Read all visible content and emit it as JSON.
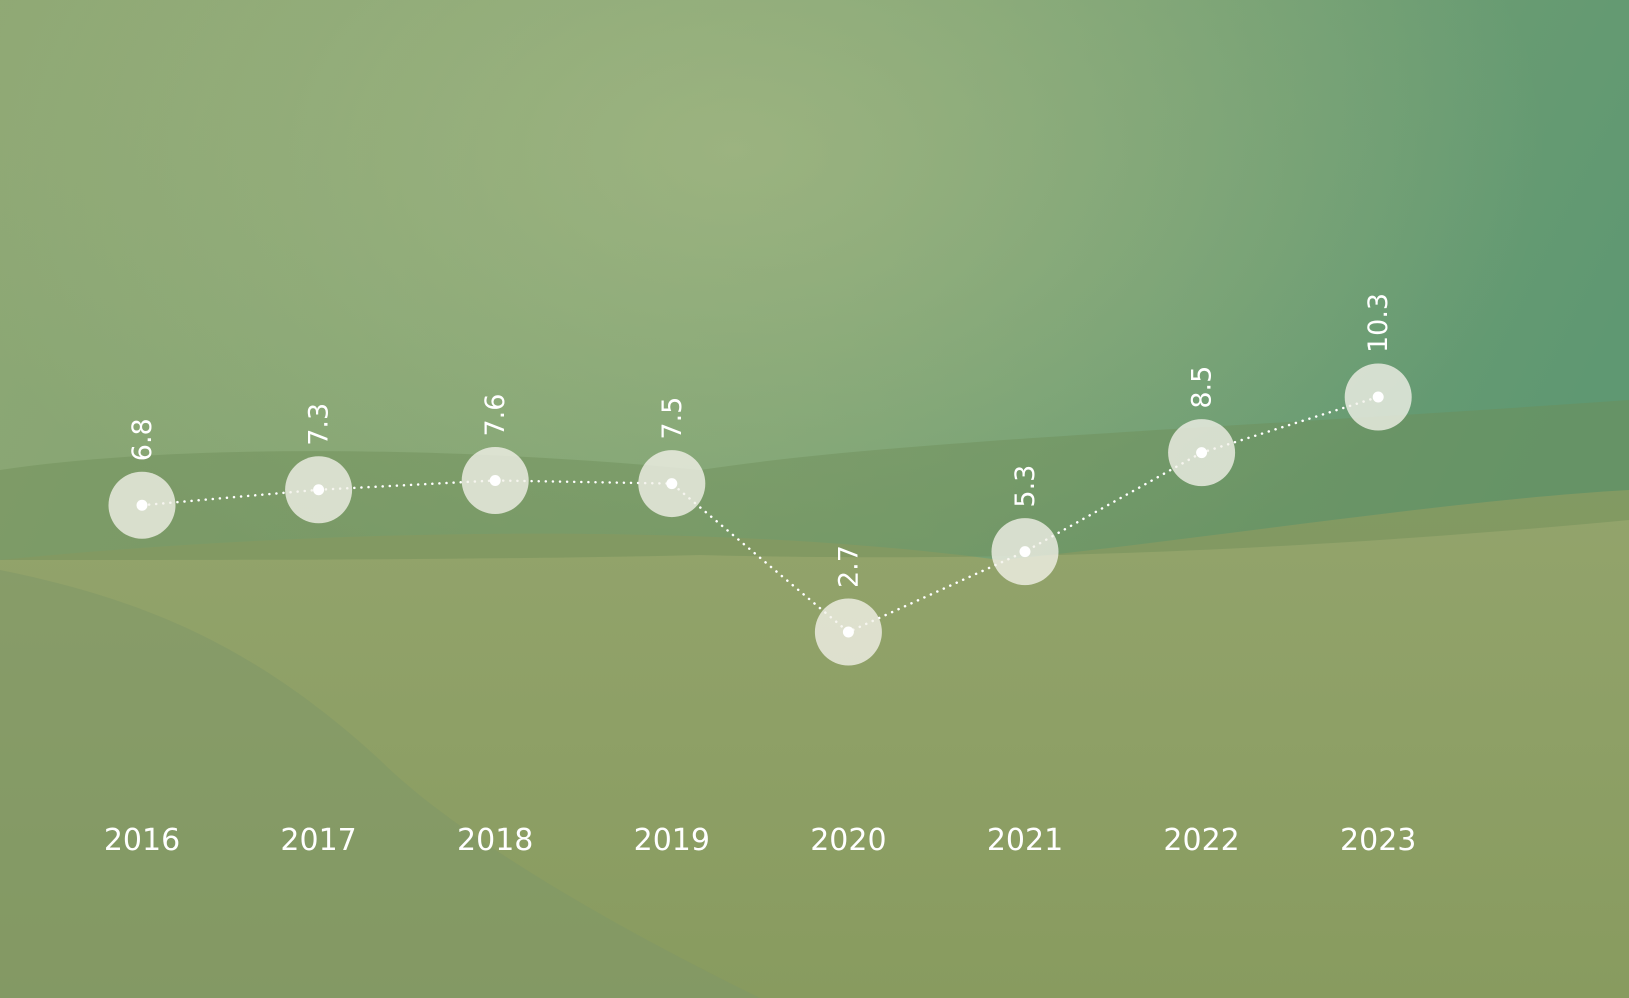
{
  "chart_data": {
    "type": "line",
    "categories": [
      "2016",
      "2017",
      "2018",
      "2019",
      "2020",
      "2021",
      "2022",
      "2023"
    ],
    "values": [
      6.8,
      7.3,
      7.6,
      7.5,
      2.7,
      5.3,
      8.5,
      10.3
    ],
    "color": "#ffffff"
  }
}
